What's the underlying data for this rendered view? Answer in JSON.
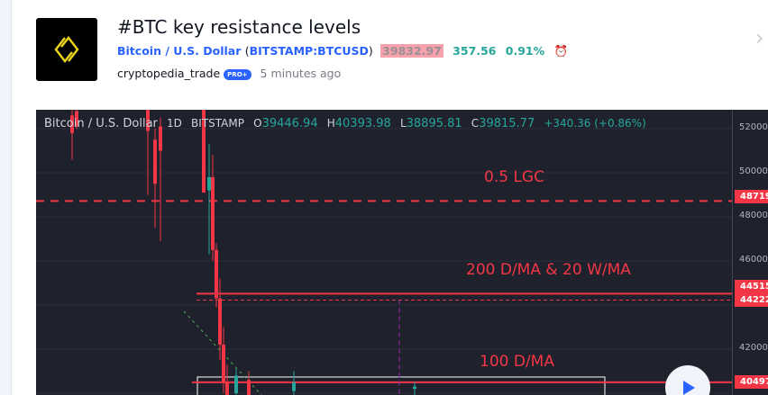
{
  "idea": {
    "title": "#BTC key resistance levels",
    "symbol_name": "Bitcoin / U.S. Dollar",
    "symbol_code": "BITSTAMP:BTCUSD",
    "price": "39832.97",
    "change": "357.56",
    "change_pct": "0.91%",
    "author": "cryptopedia_trade",
    "badge": "PRO+",
    "time": "5 minutes ago"
  },
  "chart": {
    "legend": {
      "symbol": "Bitcoin / U.S. Dollar",
      "interval": "1D",
      "exchange": "BITSTAMP",
      "o_label": "O",
      "o": "39446.94",
      "h_label": "H",
      "h": "40393.98",
      "l_label": "L",
      "l": "38895.81",
      "c_label": "C",
      "c": "39815.77",
      "change": "+340.36 (+0.86%)"
    },
    "annotations": [
      "0.5 LGC",
      "200 D/MA & 20 W/MA",
      "100 D/MA"
    ],
    "axis_ticks": [
      "52000.",
      "50000.",
      "48000.",
      "46000.",
      "42000."
    ],
    "price_tags": [
      "48719.",
      "44515.",
      "44222.",
      "40497."
    ],
    "levels": [
      48719,
      44515,
      44222,
      40497
    ],
    "colors": {
      "up": "#26a69a",
      "down": "#f23645",
      "background": "#1f222d"
    }
  }
}
